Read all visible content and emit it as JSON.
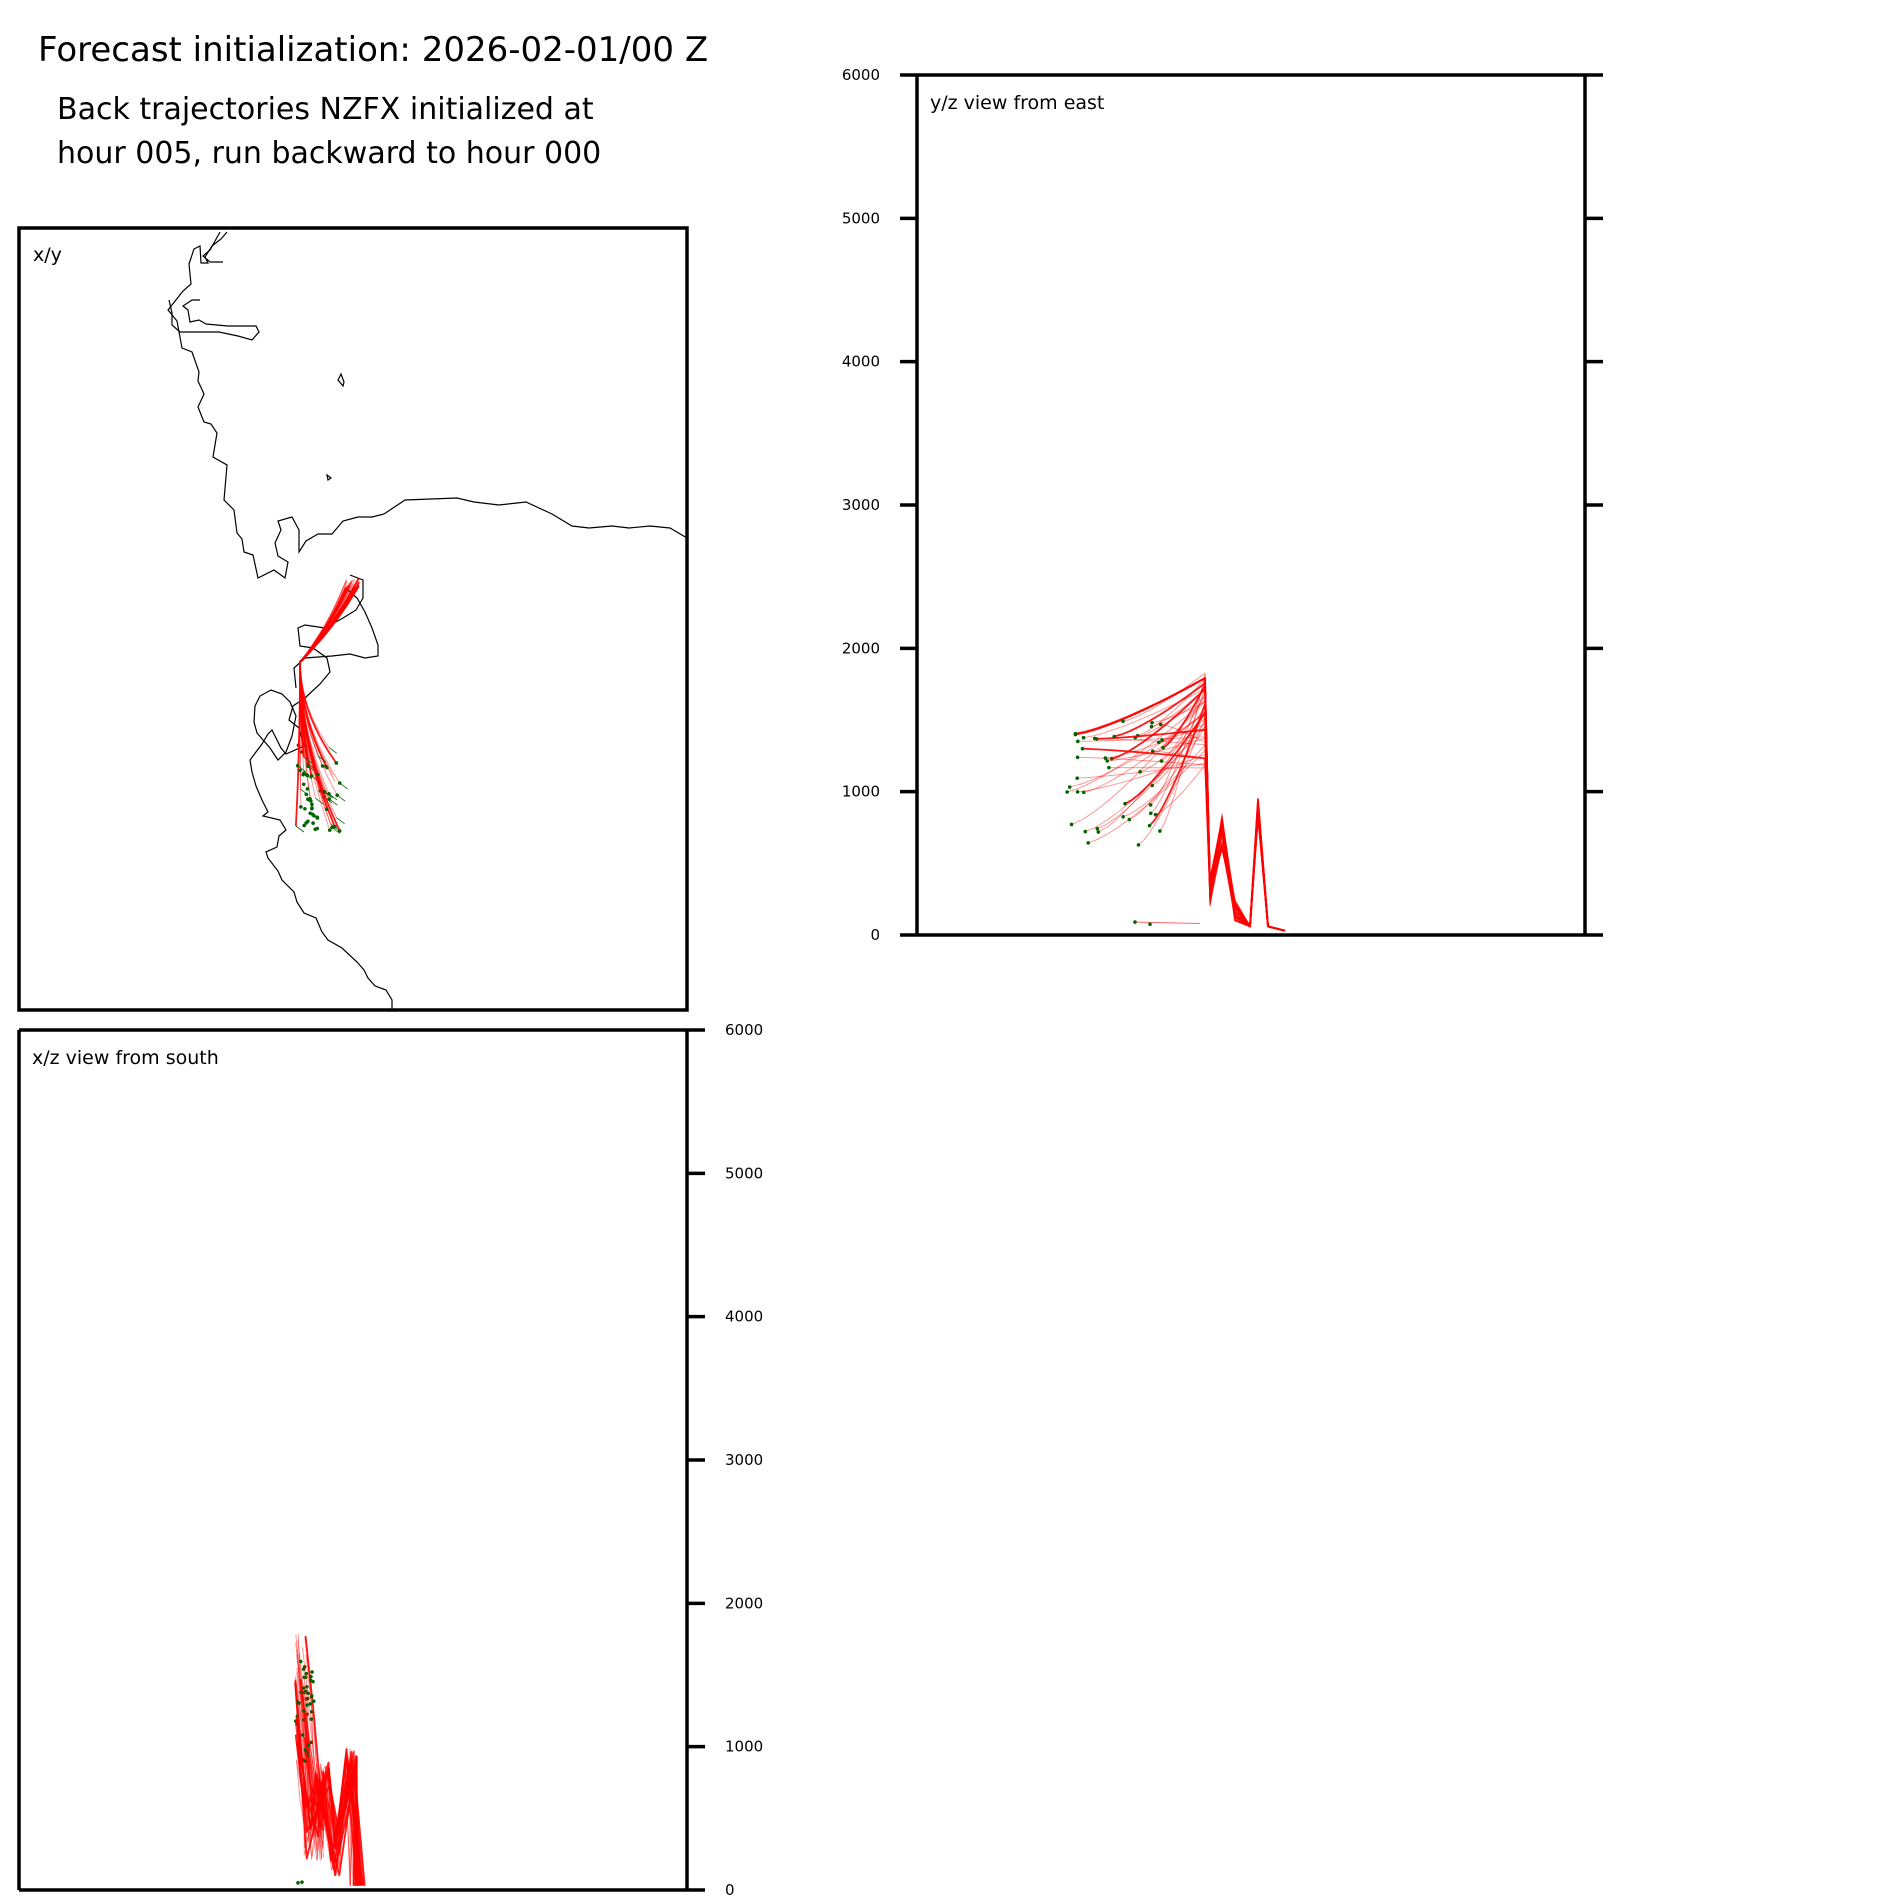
{
  "figure": {
    "title": "Forecast initialization: 2026-02-01/00 Z",
    "subtitle_line1": "Back trajectories NZFX initialized at",
    "subtitle_line2": "hour 005, run backward to hour 000"
  },
  "colors": {
    "trajectory": "#ff0000",
    "endpoint": "#006400",
    "coastline": "#000000",
    "frame": "#000000"
  },
  "chart_data": [
    {
      "type": "line",
      "panel": "x/y",
      "title": "x/y",
      "description_units": "plan view map with coastline",
      "series": [
        {
          "x": [
            0.0,
            -0.02,
            -0.05,
            -0.08,
            -0.12,
            -0.15,
            -0.17,
            -0.18
          ],
          "y": [
            1.0,
            0.92,
            0.82,
            0.72,
            0.62,
            0.52,
            0.42,
            0.33
          ]
        }
      ]
    },
    {
      "type": "line",
      "panel": "y/z view from east",
      "title": "y/z view from east",
      "ylim": [
        0,
        6000
      ],
      "yticks": [
        0,
        1000,
        2000,
        3000,
        4000,
        5000,
        6000
      ],
      "series": [
        {
          "y": [
            0.45,
            0.44,
            0.43,
            0.4,
            0.34,
            0.3,
            0.22,
            0.12
          ],
          "z": [
            30,
            40,
            900,
            200,
            700,
            1600,
            1300,
            1100
          ]
        }
      ]
    },
    {
      "type": "line",
      "panel": "x/z view from south",
      "title": "x/z view from south",
      "ylim": [
        0,
        6000
      ],
      "yticks": [
        0,
        1000,
        2000,
        3000,
        4000,
        5000,
        6000
      ],
      "series": [
        {
          "x": [
            0.51,
            0.49,
            0.45,
            0.44,
            0.43,
            0.42,
            0.42
          ],
          "z": [
            30,
            300,
            700,
            200,
            900,
            1300,
            1800
          ]
        }
      ]
    }
  ]
}
